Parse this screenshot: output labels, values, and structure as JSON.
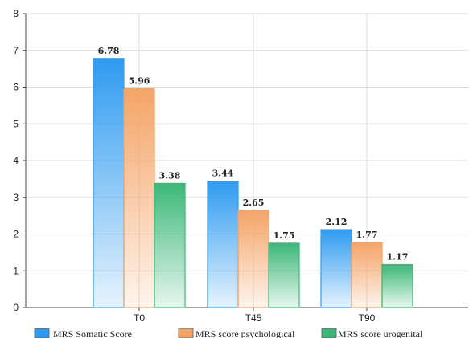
{
  "chart_data": {
    "type": "bar",
    "categories": [
      "T0",
      "T45",
      "T90"
    ],
    "series": [
      {
        "name": "MRS Somatic Score",
        "values": [
          6.78,
          3.44,
          2.12
        ],
        "color": "#2f9bf0"
      },
      {
        "name": "MRS score psychological",
        "values": [
          5.96,
          2.65,
          1.77
        ],
        "color": "#f4a467"
      },
      {
        "name": "MRS score urogenital",
        "values": [
          3.38,
          1.75,
          1.17
        ],
        "color": "#3cb878"
      }
    ],
    "data_labels": [
      [
        "6.78",
        "3.44",
        "2.12"
      ],
      [
        "5.96",
        "2.65",
        "1.77"
      ],
      [
        "3.38",
        "1.75",
        "1.17"
      ]
    ],
    "y_ticks": [
      "0",
      "1",
      "2",
      "3",
      "4",
      "5",
      "6",
      "7",
      "8"
    ],
    "ylim": [
      0,
      8
    ],
    "grid": true,
    "legend_placement": "bottom"
  }
}
